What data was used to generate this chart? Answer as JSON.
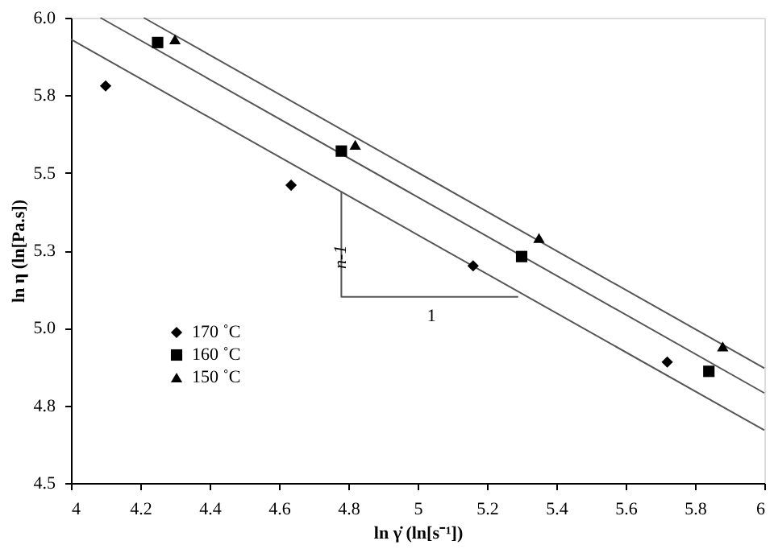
{
  "chart_data": {
    "type": "scatter",
    "xlabel": "ln γ̇ (ln[s⁻¹])",
    "ylabel": "ln η (ln[Pa.s])",
    "xlim": [
      4,
      6
    ],
    "xticks": [
      4,
      4.2,
      4.4,
      4.6,
      4.8,
      5,
      5.2,
      5.4,
      5.6,
      5.8,
      6
    ],
    "ylim": [
      4.5,
      6.0
    ],
    "yticks": [
      {
        "value": 4.5,
        "label": "4.5"
      },
      {
        "value": 4.75,
        "label": "4.8"
      },
      {
        "value": 5.0,
        "label": "5.0"
      },
      {
        "value": 5.25,
        "label": "5.3"
      },
      {
        "value": 5.5,
        "label": "5.5"
      },
      {
        "value": 5.75,
        "label": "5.8"
      },
      {
        "value": 6.0,
        "label": "6.0"
      }
    ],
    "grid": false,
    "legend": "bottom left",
    "series": [
      {
        "name": "170 ˚C",
        "color": "#000000",
        "marker": "diamond",
        "x": [
          4.1,
          4.635,
          5.16,
          5.72
        ],
        "values": [
          5.78,
          5.46,
          5.2,
          4.89
        ]
      },
      {
        "name": "160 ˚C",
        "color": "#000000",
        "marker": "square",
        "x": [
          4.25,
          4.78,
          5.3,
          5.84
        ],
        "values": [
          5.92,
          5.57,
          5.23,
          4.86
        ]
      },
      {
        "name": "150 ˚C",
        "color": "#000000",
        "marker": "triangle",
        "x": [
          4.3,
          4.82,
          5.35,
          5.88
        ],
        "values": [
          5.93,
          5.59,
          5.29,
          4.94
        ]
      },
      {
        "type": "line",
        "color": "#555555",
        "x": [
          4,
          6
        ],
        "values": [
          5.93,
          4.67
        ]
      },
      {
        "type": "line",
        "color": "#555555",
        "x": [
          4.085,
          6
        ],
        "values": [
          6.0,
          4.79
        ]
      },
      {
        "type": "line",
        "color": "#555555",
        "x": [
          4.21,
          6
        ],
        "values": [
          6.0,
          4.87
        ]
      },
      {
        "type": "line",
        "color": "#555555",
        "x": [
          4.78,
          4.78,
          5.29
        ],
        "values": [
          5.44,
          5.1,
          5.1
        ]
      }
    ],
    "annotations": [
      {
        "text": "n-1",
        "x": 4.78,
        "y": 5.27
      },
      {
        "text": "1",
        "x": 5.04,
        "y": 5.1
      }
    ]
  }
}
